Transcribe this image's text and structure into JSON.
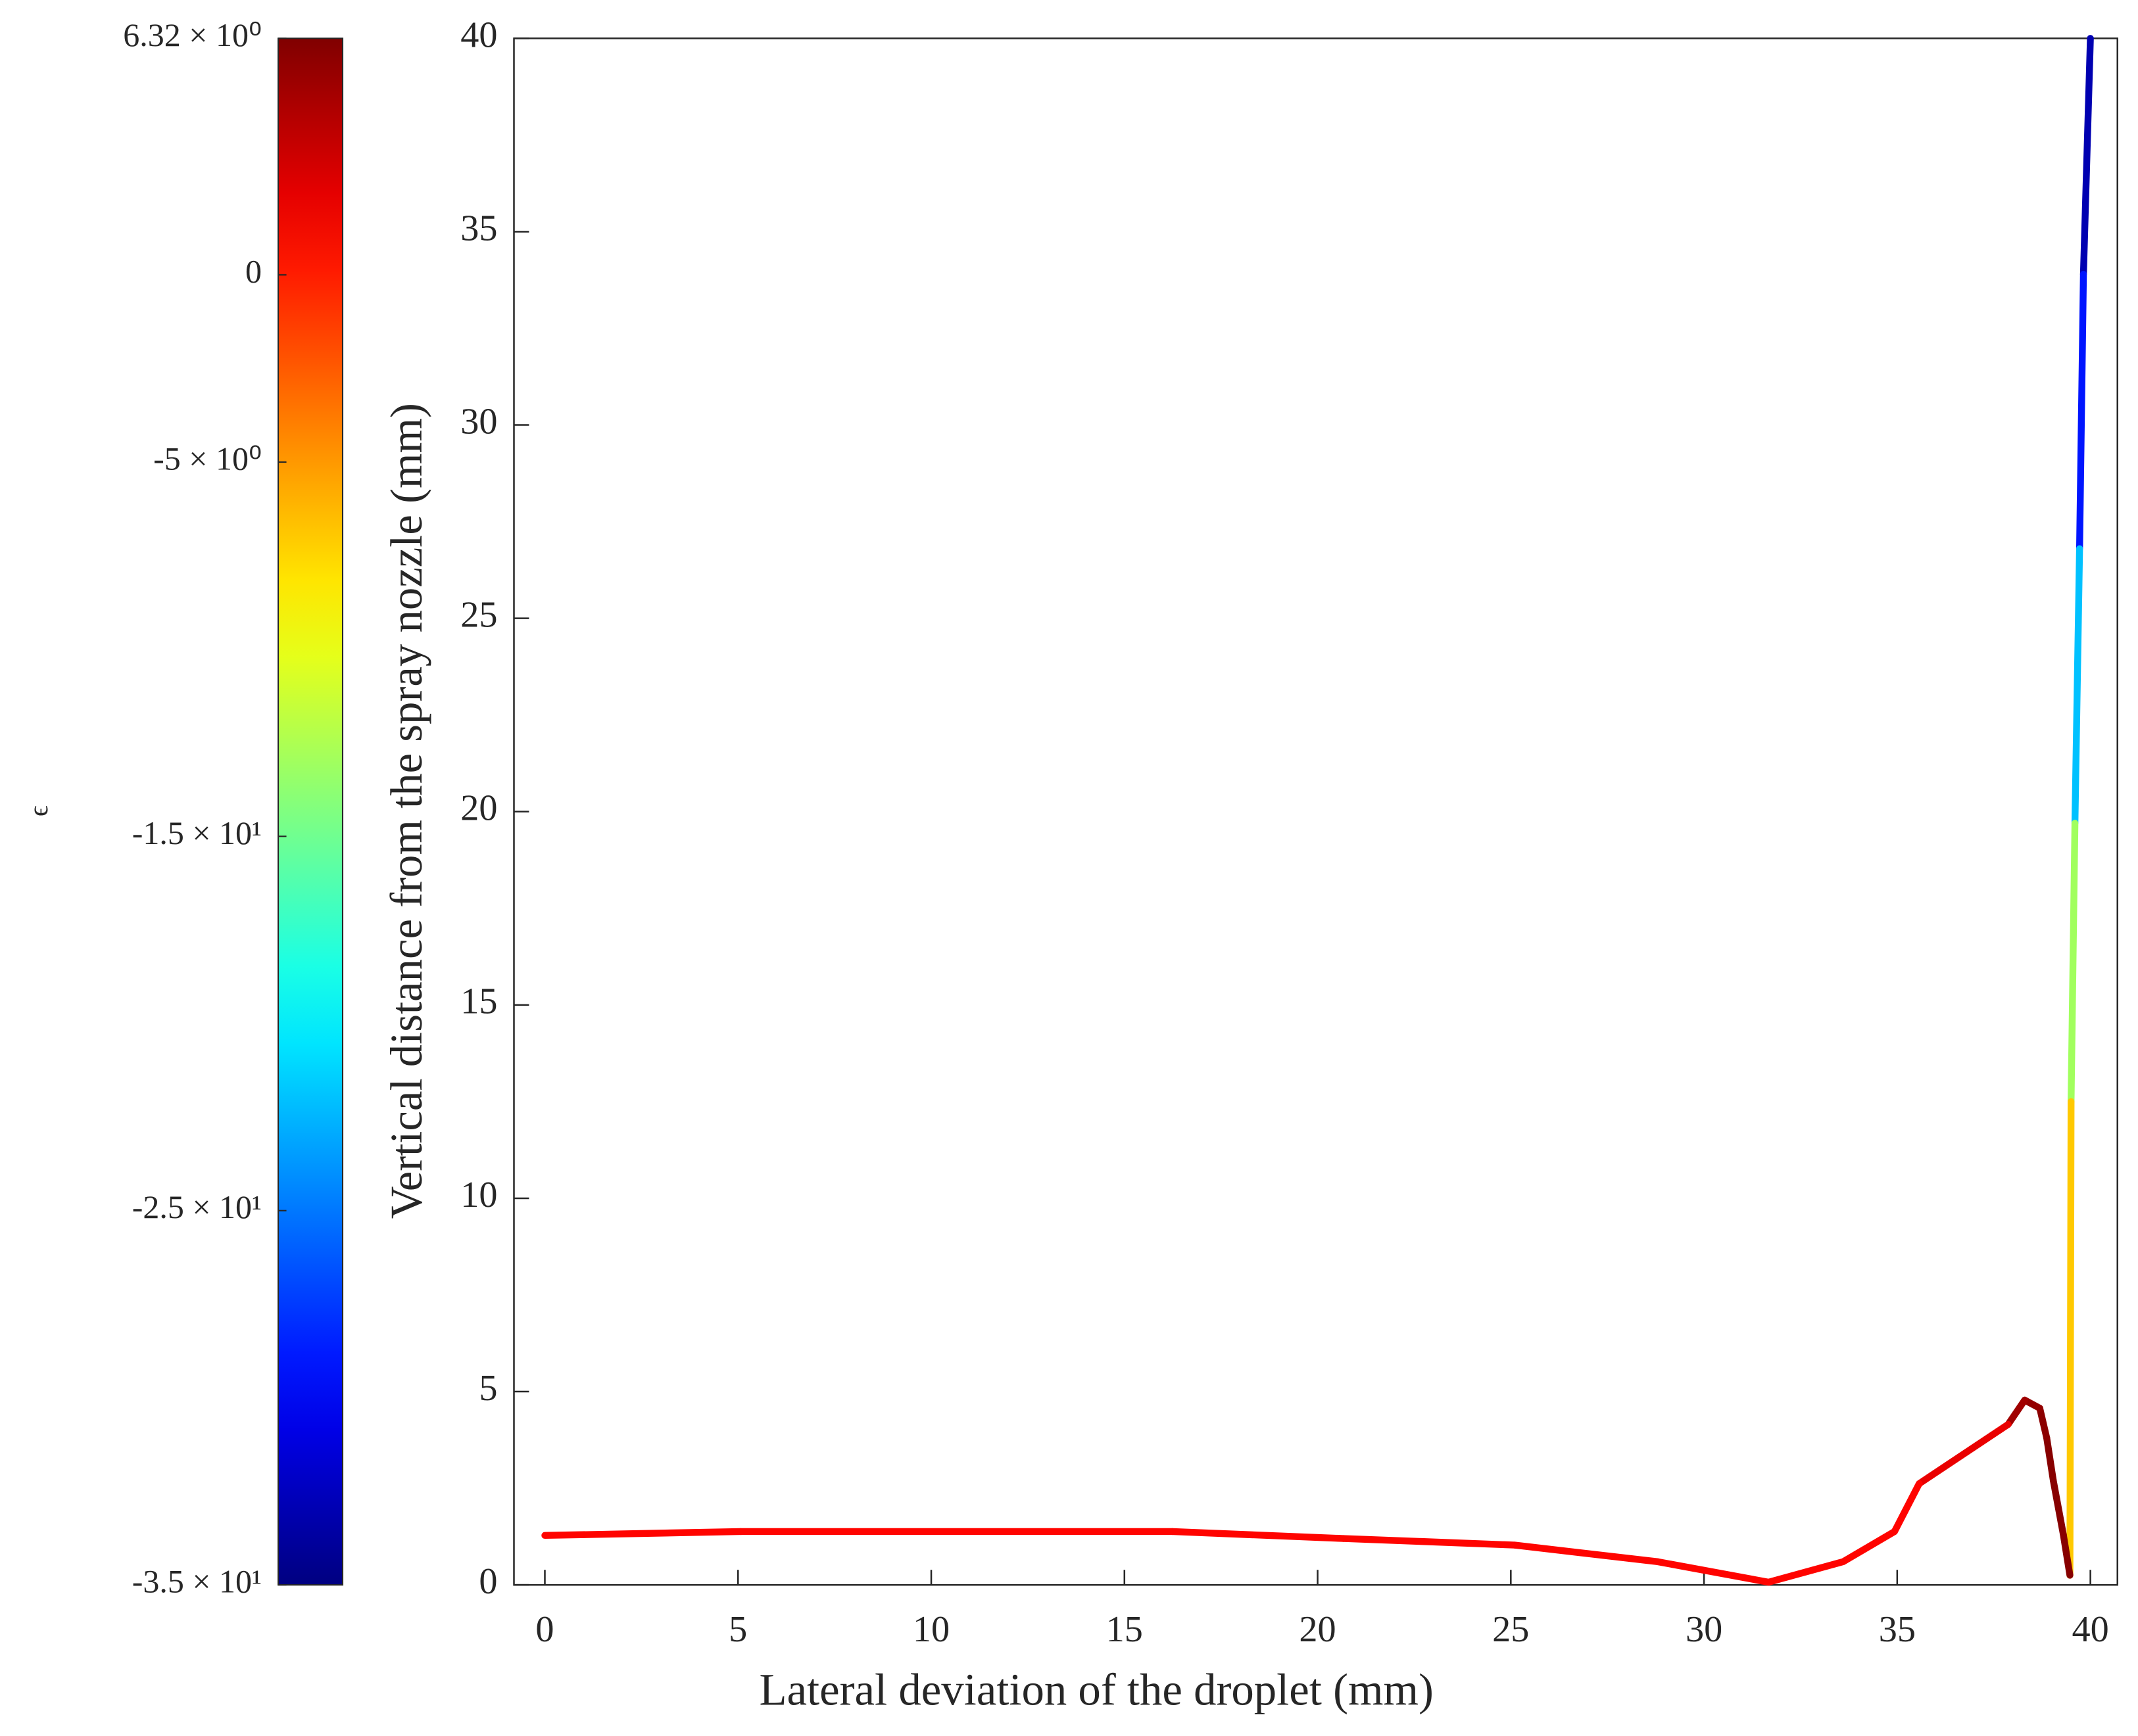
{
  "chart_data": {
    "type": "colored-line",
    "xlabel": "Lateral deviation of the droplet (mm)",
    "ylabel": "Vertical distance from the spray nozzle (mm)",
    "xlim": [
      -0.8,
      40.7
    ],
    "ylim": [
      0,
      40
    ],
    "xticks": [
      0,
      5,
      10,
      15,
      20,
      25,
      30,
      35,
      40
    ],
    "yticks": [
      0,
      5,
      10,
      15,
      20,
      25,
      30,
      35,
      40
    ],
    "colormap": "jet",
    "colorbar": {
      "label": "ϵ",
      "clim": [
        -35,
        6.32
      ],
      "ticks": [
        {
          "value": 6.32,
          "label": "6.32 × 10⁰"
        },
        0,
        {
          "value": -5,
          "label": "-5 × 10⁰"
        },
        {
          "value": -15,
          "label": "-1.5 × 10¹"
        },
        {
          "value": -25,
          "label": "-2.5 × 10¹"
        },
        {
          "value": -35,
          "label": "-3.5 × 10¹"
        }
      ]
    },
    "series": {
      "x": [
        40,
        39.82,
        39.72,
        39.6,
        39.5,
        39.47,
        39.3,
        39.04,
        38.87,
        38.69,
        38.3,
        37.87,
        35.57,
        34.93,
        33.6,
        31.67,
        28.8,
        25.1,
        20.67,
        16.24,
        5.07,
        0
      ],
      "y": [
        40,
        33.9,
        26.8,
        19.7,
        12.5,
        0.25,
        1.3,
        2.7,
        3.8,
        4.57,
        4.78,
        4.15,
        2.62,
        1.38,
        0.6,
        0.07,
        0.6,
        1.03,
        1.2,
        1.38,
        1.38,
        1.28
      ],
      "c": [
        -33,
        -29,
        -22,
        -13,
        -7,
        6,
        6,
        6,
        5.8,
        5.5,
        5,
        2,
        1,
        1,
        1,
        1,
        1,
        1,
        1,
        1,
        1,
        1
      ]
    }
  }
}
